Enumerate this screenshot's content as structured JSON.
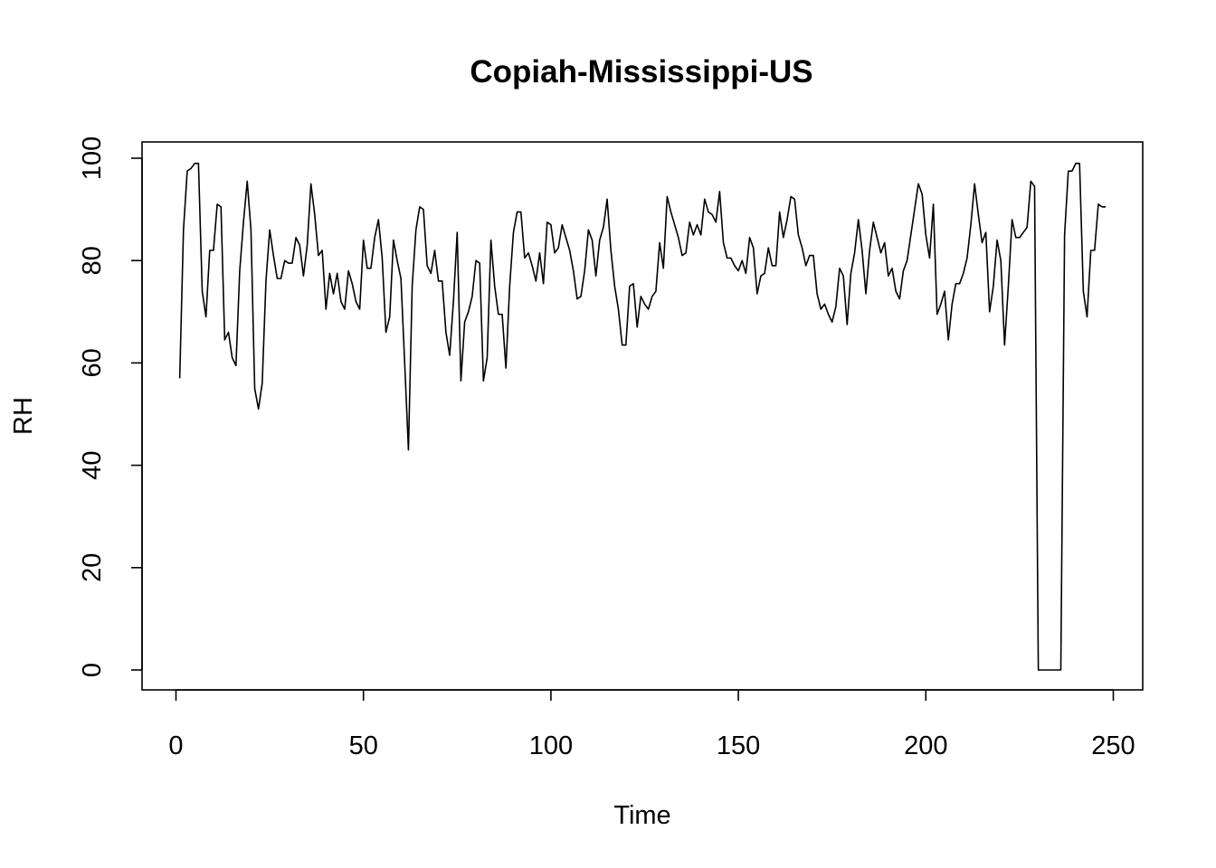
{
  "chart_data": {
    "type": "line",
    "title": "Copiah-Mississippi-US",
    "xlabel": "Time",
    "ylabel": "RH",
    "xlim": [
      1,
      248
    ],
    "ylim": [
      0,
      100
    ],
    "x_ticks": [
      0,
      50,
      100,
      150,
      200,
      250
    ],
    "y_ticks": [
      0,
      20,
      40,
      60,
      80,
      100
    ],
    "grid": false,
    "line_color": "#000000",
    "values": [
      57,
      86,
      97.5,
      98,
      99,
      99,
      74,
      69,
      82,
      82,
      91,
      90.5,
      64.5,
      66,
      61,
      59.5,
      78,
      87.5,
      95.5,
      86,
      55,
      51,
      56,
      76,
      86,
      81,
      76.5,
      76.5,
      80,
      79.5,
      79.5,
      84.5,
      83,
      77,
      83,
      95,
      89,
      81,
      82,
      70.5,
      77.5,
      73.5,
      77.5,
      72,
      70.5,
      78,
      75.5,
      72,
      70.5,
      84,
      78.5,
      78.5,
      84.5,
      88,
      80.5,
      66,
      69,
      84,
      80,
      76.5,
      60,
      43,
      75,
      86,
      90.5,
      90,
      79,
      77.5,
      82,
      76,
      76,
      66,
      61.5,
      72,
      85.5,
      56.5,
      68,
      70,
      73,
      80,
      79.5,
      56.5,
      61,
      84,
      75,
      69.5,
      69.5,
      59,
      75,
      85.5,
      89.5,
      89.5,
      80.5,
      81.5,
      79,
      76,
      81.5,
      75.5,
      87.5,
      87,
      81.5,
      82.5,
      87,
      84.5,
      82,
      78,
      72.5,
      73,
      78,
      86,
      84,
      77,
      84,
      86.5,
      92,
      82,
      75,
      70.5,
      63.5,
      63.5,
      75,
      75.5,
      67,
      73,
      71.5,
      70.5,
      73,
      74,
      83.5,
      78.5,
      92.5,
      89.5,
      87,
      84.5,
      81,
      81.5,
      87.5,
      85,
      87,
      85,
      92,
      89.5,
      89,
      87.5,
      93.5,
      83.5,
      80.5,
      80.5,
      79,
      78,
      80,
      77.5,
      84.5,
      82.5,
      73.5,
      77,
      77.5,
      82.5,
      79,
      79,
      89.5,
      84.5,
      88,
      92.5,
      92,
      85,
      82.5,
      79,
      81,
      81,
      73.5,
      70.5,
      71.5,
      69.5,
      68,
      71,
      78.5,
      77,
      67.5,
      77.5,
      81.5,
      88,
      82,
      73.5,
      82,
      87.5,
      84.5,
      81.5,
      83.5,
      77,
      78.5,
      74,
      72.5,
      78,
      80,
      85,
      90,
      95,
      93,
      85,
      80.5,
      91,
      69.5,
      71.5,
      74,
      64.5,
      71.5,
      75.5,
      75.5,
      77.5,
      80.5,
      87,
      95,
      89,
      83.5,
      85.5,
      70,
      75,
      84,
      80,
      63.5,
      75,
      88,
      84.5,
      84.5,
      85.5,
      86.5,
      95.5,
      94.5,
      0,
      0,
      0,
      0,
      0,
      0,
      0,
      85,
      97.5,
      97.5,
      99,
      99,
      74,
      69,
      82,
      82,
      91,
      90.5,
      90.5
    ]
  }
}
